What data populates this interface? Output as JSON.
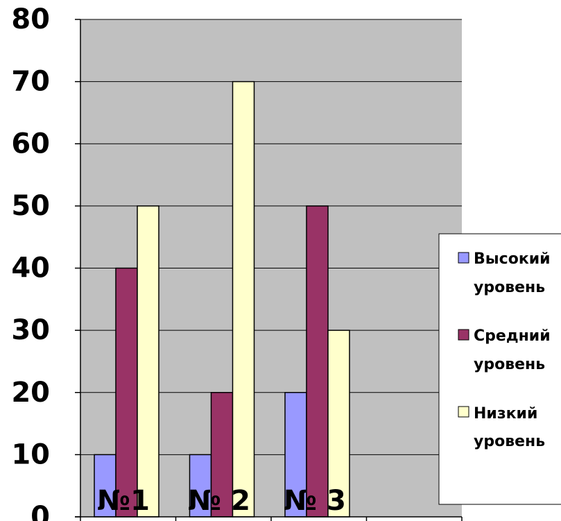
{
  "chart_data": {
    "type": "bar",
    "categories": [
      "№1",
      "№ 2",
      "№ 3",
      ""
    ],
    "series": [
      {
        "name": "Высокий уровень",
        "values": [
          10,
          10,
          20,
          null
        ],
        "color": "#9999ff"
      },
      {
        "name": "Средний уровень",
        "values": [
          40,
          20,
          50,
          null
        ],
        "color": "#993366"
      },
      {
        "name": "Низкий уровень",
        "values": [
          50,
          70,
          30,
          null
        ],
        "color": "#ffffcc"
      }
    ],
    "y_ticks": [
      0,
      10,
      20,
      30,
      40,
      50,
      60,
      70,
      80
    ],
    "ylim": [
      0,
      80
    ],
    "grid": true,
    "plot_background": "#c0c0c0",
    "legend": {
      "placement": "right",
      "entries": [
        {
          "line1": "Высокий",
          "line2": "уровень"
        },
        {
          "line1": "Средний",
          "line2": "уровень"
        },
        {
          "line1": "Низкий",
          "line2": "уровень"
        }
      ]
    }
  }
}
